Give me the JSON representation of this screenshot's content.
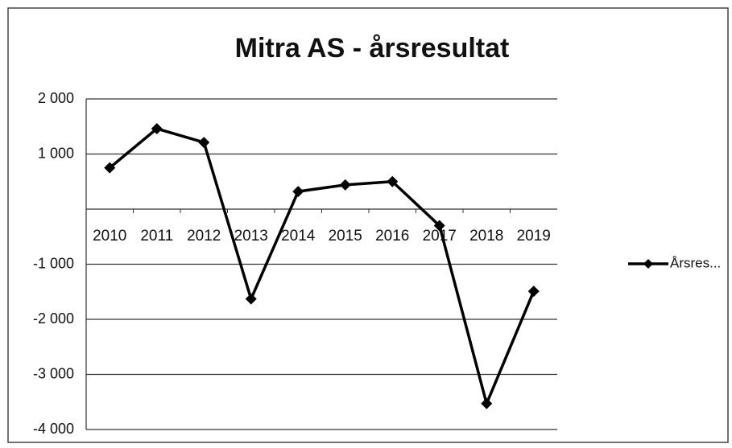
{
  "chart_data": {
    "type": "line",
    "title": "Mitra AS - årsresultat",
    "categories": [
      "2010",
      "2011",
      "2012",
      "2013",
      "2014",
      "2015",
      "2016",
      "2017",
      "2018",
      "2019"
    ],
    "series": [
      {
        "name": "Årsres...",
        "color": "#000000",
        "values": [
          750,
          1460,
          1210,
          -1630,
          320,
          440,
          500,
          -300,
          -3530,
          -1490
        ]
      }
    ],
    "ylim": [
      -4000,
      2000
    ],
    "yticks": [
      {
        "value": 2000,
        "label": "2 000"
      },
      {
        "value": 1000,
        "label": "1 000"
      },
      {
        "value": -1000,
        "label": "-1 000"
      },
      {
        "value": -2000,
        "label": "-2 000"
      },
      {
        "value": -3000,
        "label": "-3 000"
      },
      {
        "value": -4000,
        "label": "-4 000"
      }
    ],
    "grid": true,
    "legend": "right"
  }
}
